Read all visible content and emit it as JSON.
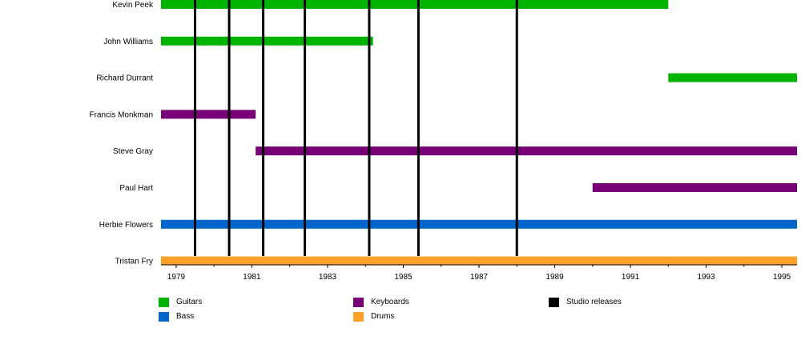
{
  "chart_data": {
    "type": "timeline",
    "x_axis": {
      "start": 1978.6,
      "end": 1995.4,
      "ticks": [
        "1979",
        "1981",
        "1983",
        "1985",
        "1987",
        "1989",
        "1991",
        "1993",
        "1995"
      ],
      "minor_ticks": [
        "1980",
        "1982",
        "1984",
        "1986",
        "1988",
        "1990",
        "1992",
        "1994"
      ]
    },
    "members": [
      {
        "name": "Kevin Peek",
        "role": "Guitars",
        "start": 1978.6,
        "end": 1992.0
      },
      {
        "name": "John Williams",
        "role": "Guitars",
        "start": 1978.6,
        "end": 1984.2
      },
      {
        "name": "Richard Durrant",
        "role": "Guitars",
        "start": 1992.0,
        "end": 1995.4
      },
      {
        "name": "Francis Monkman",
        "role": "Keyboards",
        "start": 1978.6,
        "end": 1981.1
      },
      {
        "name": "Steve Gray",
        "role": "Keyboards",
        "start": 1981.1,
        "end": 1995.4
      },
      {
        "name": "Paul Hart",
        "role": "Keyboards",
        "start": 1990.0,
        "end": 1995.4
      },
      {
        "name": "Herbie Flowers",
        "role": "Bass",
        "start": 1978.6,
        "end": 1995.4
      },
      {
        "name": "Tristan Fry",
        "role": "Drums",
        "start": 1978.6,
        "end": 1995.4
      }
    ],
    "studio_releases": [
      1979.5,
      1980.4,
      1981.3,
      1982.4,
      1984.1,
      1985.4,
      1988.0
    ],
    "legend": [
      {
        "label": "Guitars",
        "color": "#00b300"
      },
      {
        "label": "Bass",
        "color": "#0066cc"
      },
      {
        "label": "Keyboards",
        "color": "#770077"
      },
      {
        "label": "Drums",
        "color": "#ffa028"
      },
      {
        "label": "Studio releases",
        "color": "#000000"
      }
    ]
  }
}
